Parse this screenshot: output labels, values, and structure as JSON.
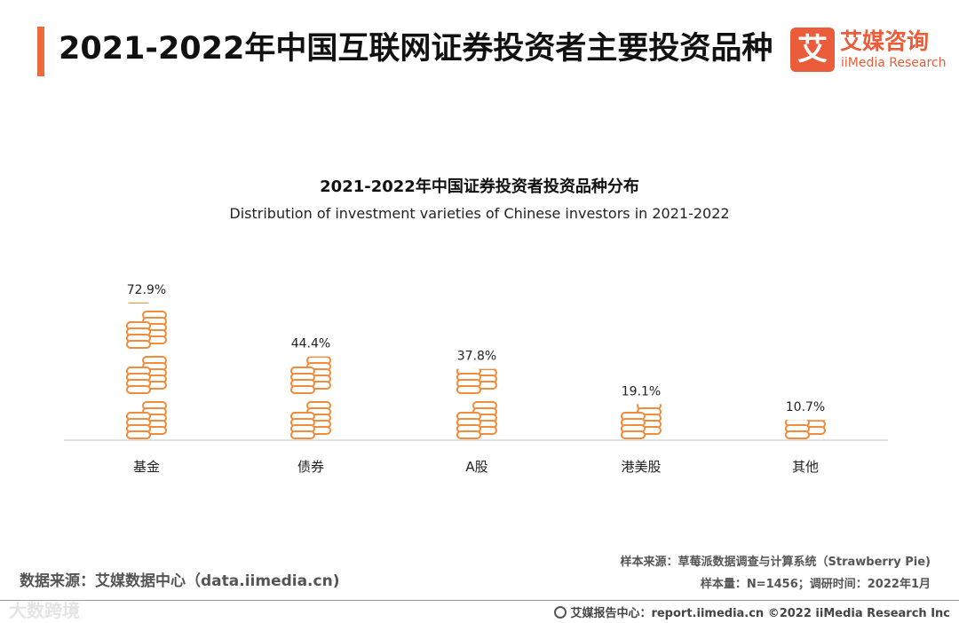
{
  "header": {
    "title": "2021-2022年中国互联网证券投资者主要投资品种",
    "brand_mark": "艾",
    "brand_name_cn": "艾媒咨询",
    "brand_name_en": "iiMedia Research"
  },
  "colors": {
    "accent": "#ee6a3c",
    "coin": "#f08c3c"
  },
  "chart_data": {
    "type": "bar",
    "title": "2021-2022年中国证券投资者投资品种分布",
    "subtitle": "Distribution of  investment varieties of Chinese investors in 2021-2022",
    "categories": [
      "基金",
      "债券",
      "A股",
      "港美股",
      "其他"
    ],
    "values": [
      72.9,
      44.4,
      37.8,
      19.1,
      10.7
    ],
    "value_labels": [
      "72.9%",
      "44.4%",
      "37.8%",
      "19.1%",
      "10.7%"
    ],
    "unit": "%",
    "ylim": [
      0,
      80
    ],
    "grid": false,
    "legend": "none",
    "mark": "coin-stack-icon"
  },
  "footer": {
    "source_left": "数据来源：艾媒数据中心（data.iimedia.cn)",
    "sample_source": "样本来源：草莓派数据调查与计算系统（Strawberry Pie)",
    "sample_size": "样本量：N=1456；调研时间：2022年1月",
    "report_center": "艾媒报告中心：report.iimedia.cn   ©2022  iiMedia Research  Inc",
    "watermark": "大数跨境"
  }
}
